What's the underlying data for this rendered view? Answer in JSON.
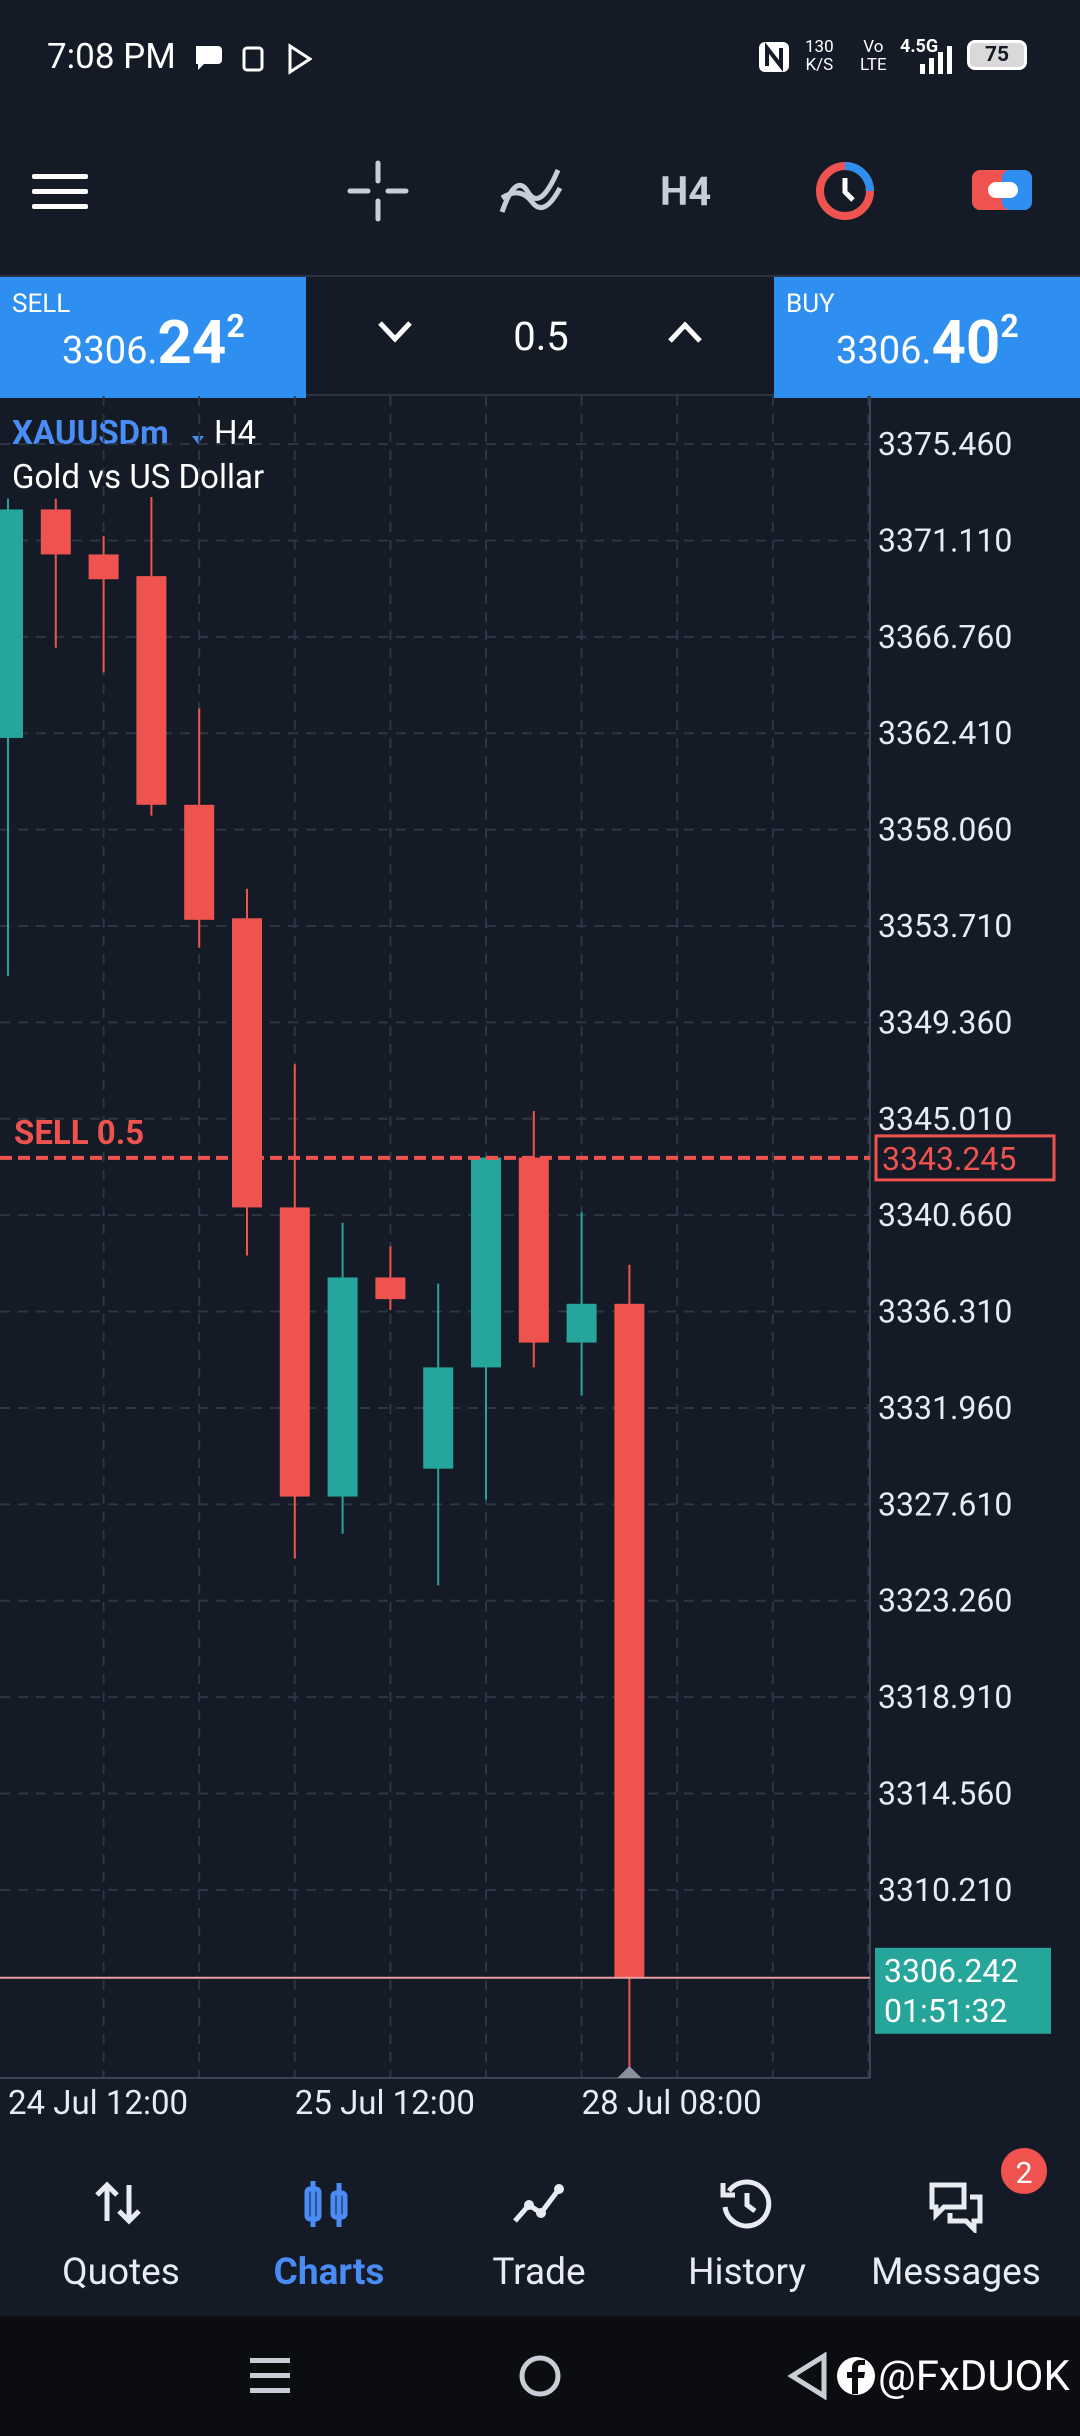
{
  "status_bar": {
    "time": "7:08 PM",
    "net_speed_value": "130",
    "net_speed_unit": "K/S",
    "vo": "Vo",
    "lte": "LTE",
    "network": "4.5G",
    "battery": "75"
  },
  "toolbar": {
    "timeframe": "H4"
  },
  "trade_panel": {
    "sell_label": "SELL",
    "sell_price_main": "3306.",
    "sell_price_big": "24",
    "sell_price_small": "2",
    "volume": "0.5",
    "buy_label": "BUY",
    "buy_price_main": "3306.",
    "buy_price_big": "40",
    "buy_price_small": "2"
  },
  "chart_data": {
    "type": "candlestick",
    "symbol": "XAUUSDm",
    "timeframe": "H4",
    "description": "Gold vs US Dollar",
    "categories": [
      "24 Jul 12:00",
      null,
      null,
      null,
      null,
      null,
      "25 Jul 12:00",
      null,
      null,
      null,
      null,
      null,
      "28 Jul 08:00",
      null
    ],
    "open": [
      3362.2,
      3372.51,
      3370.48,
      3369.5,
      3359.18,
      3354.06,
      3341.01,
      3327.96,
      3337.85,
      3329.22,
      3333.79,
      3343.26,
      3334.91,
      3336.66
    ],
    "high": [
      3373.0,
      3373.0,
      3371.32,
      3373.07,
      3363.53,
      3355.39,
      3347.47,
      3340.31,
      3339.26,
      3337.57,
      3343.26,
      3345.36,
      3340.8,
      3338.42
    ],
    "low": [
      3351.46,
      3366.27,
      3365.15,
      3358.69,
      3352.73,
      3338.84,
      3325.16,
      3326.28,
      3336.38,
      3323.96,
      3327.82,
      3333.79,
      3332.52,
      3301.86
    ],
    "close": [
      3372.51,
      3370.48,
      3369.36,
      3359.18,
      3353.99,
      3341.01,
      3327.96,
      3337.85,
      3336.87,
      3333.79,
      3343.26,
      3334.91,
      3336.66,
      3306.242
    ],
    "up_color": "#26a69a",
    "down_color": "#ef5350",
    "ylim": [
      3301.72,
      3377.63
    ],
    "yticks": [
      {
        "value": 3375.46,
        "label": "3375.460"
      },
      {
        "value": 3371.11,
        "label": "3371.110"
      },
      {
        "value": 3366.76,
        "label": "3366.760"
      },
      {
        "value": 3362.41,
        "label": "3362.410"
      },
      {
        "value": 3358.06,
        "label": "3358.060"
      },
      {
        "value": 3353.71,
        "label": "3353.710"
      },
      {
        "value": 3349.36,
        "label": "3349.360"
      },
      {
        "value": 3345.01,
        "label": "3345.010"
      },
      {
        "value": 3340.66,
        "label": "3340.660"
      },
      {
        "value": 3336.31,
        "label": "3336.310"
      },
      {
        "value": 3331.96,
        "label": "3331.960"
      },
      {
        "value": 3327.61,
        "label": "3327.610"
      },
      {
        "value": 3323.26,
        "label": "3323.260"
      },
      {
        "value": 3318.91,
        "label": "3318.910"
      },
      {
        "value": 3314.56,
        "label": "3314.560"
      },
      {
        "value": 3310.21,
        "label": "3310.210"
      }
    ],
    "grid": true,
    "order_line": {
      "label": "SELL 0.5",
      "value": 3343.245,
      "color": "#ef5350"
    },
    "bid_line": {
      "value": 3306.242,
      "timer": "01:51:32",
      "color": "#26a69a"
    }
  },
  "nav": {
    "active_index": 1,
    "items": [
      {
        "label": "Quotes"
      },
      {
        "label": "Charts"
      },
      {
        "label": "Trade"
      },
      {
        "label": "History"
      },
      {
        "label": "Messages",
        "badge": "2"
      }
    ]
  },
  "system_bar": {
    "handle": "@FxDUOK"
  }
}
